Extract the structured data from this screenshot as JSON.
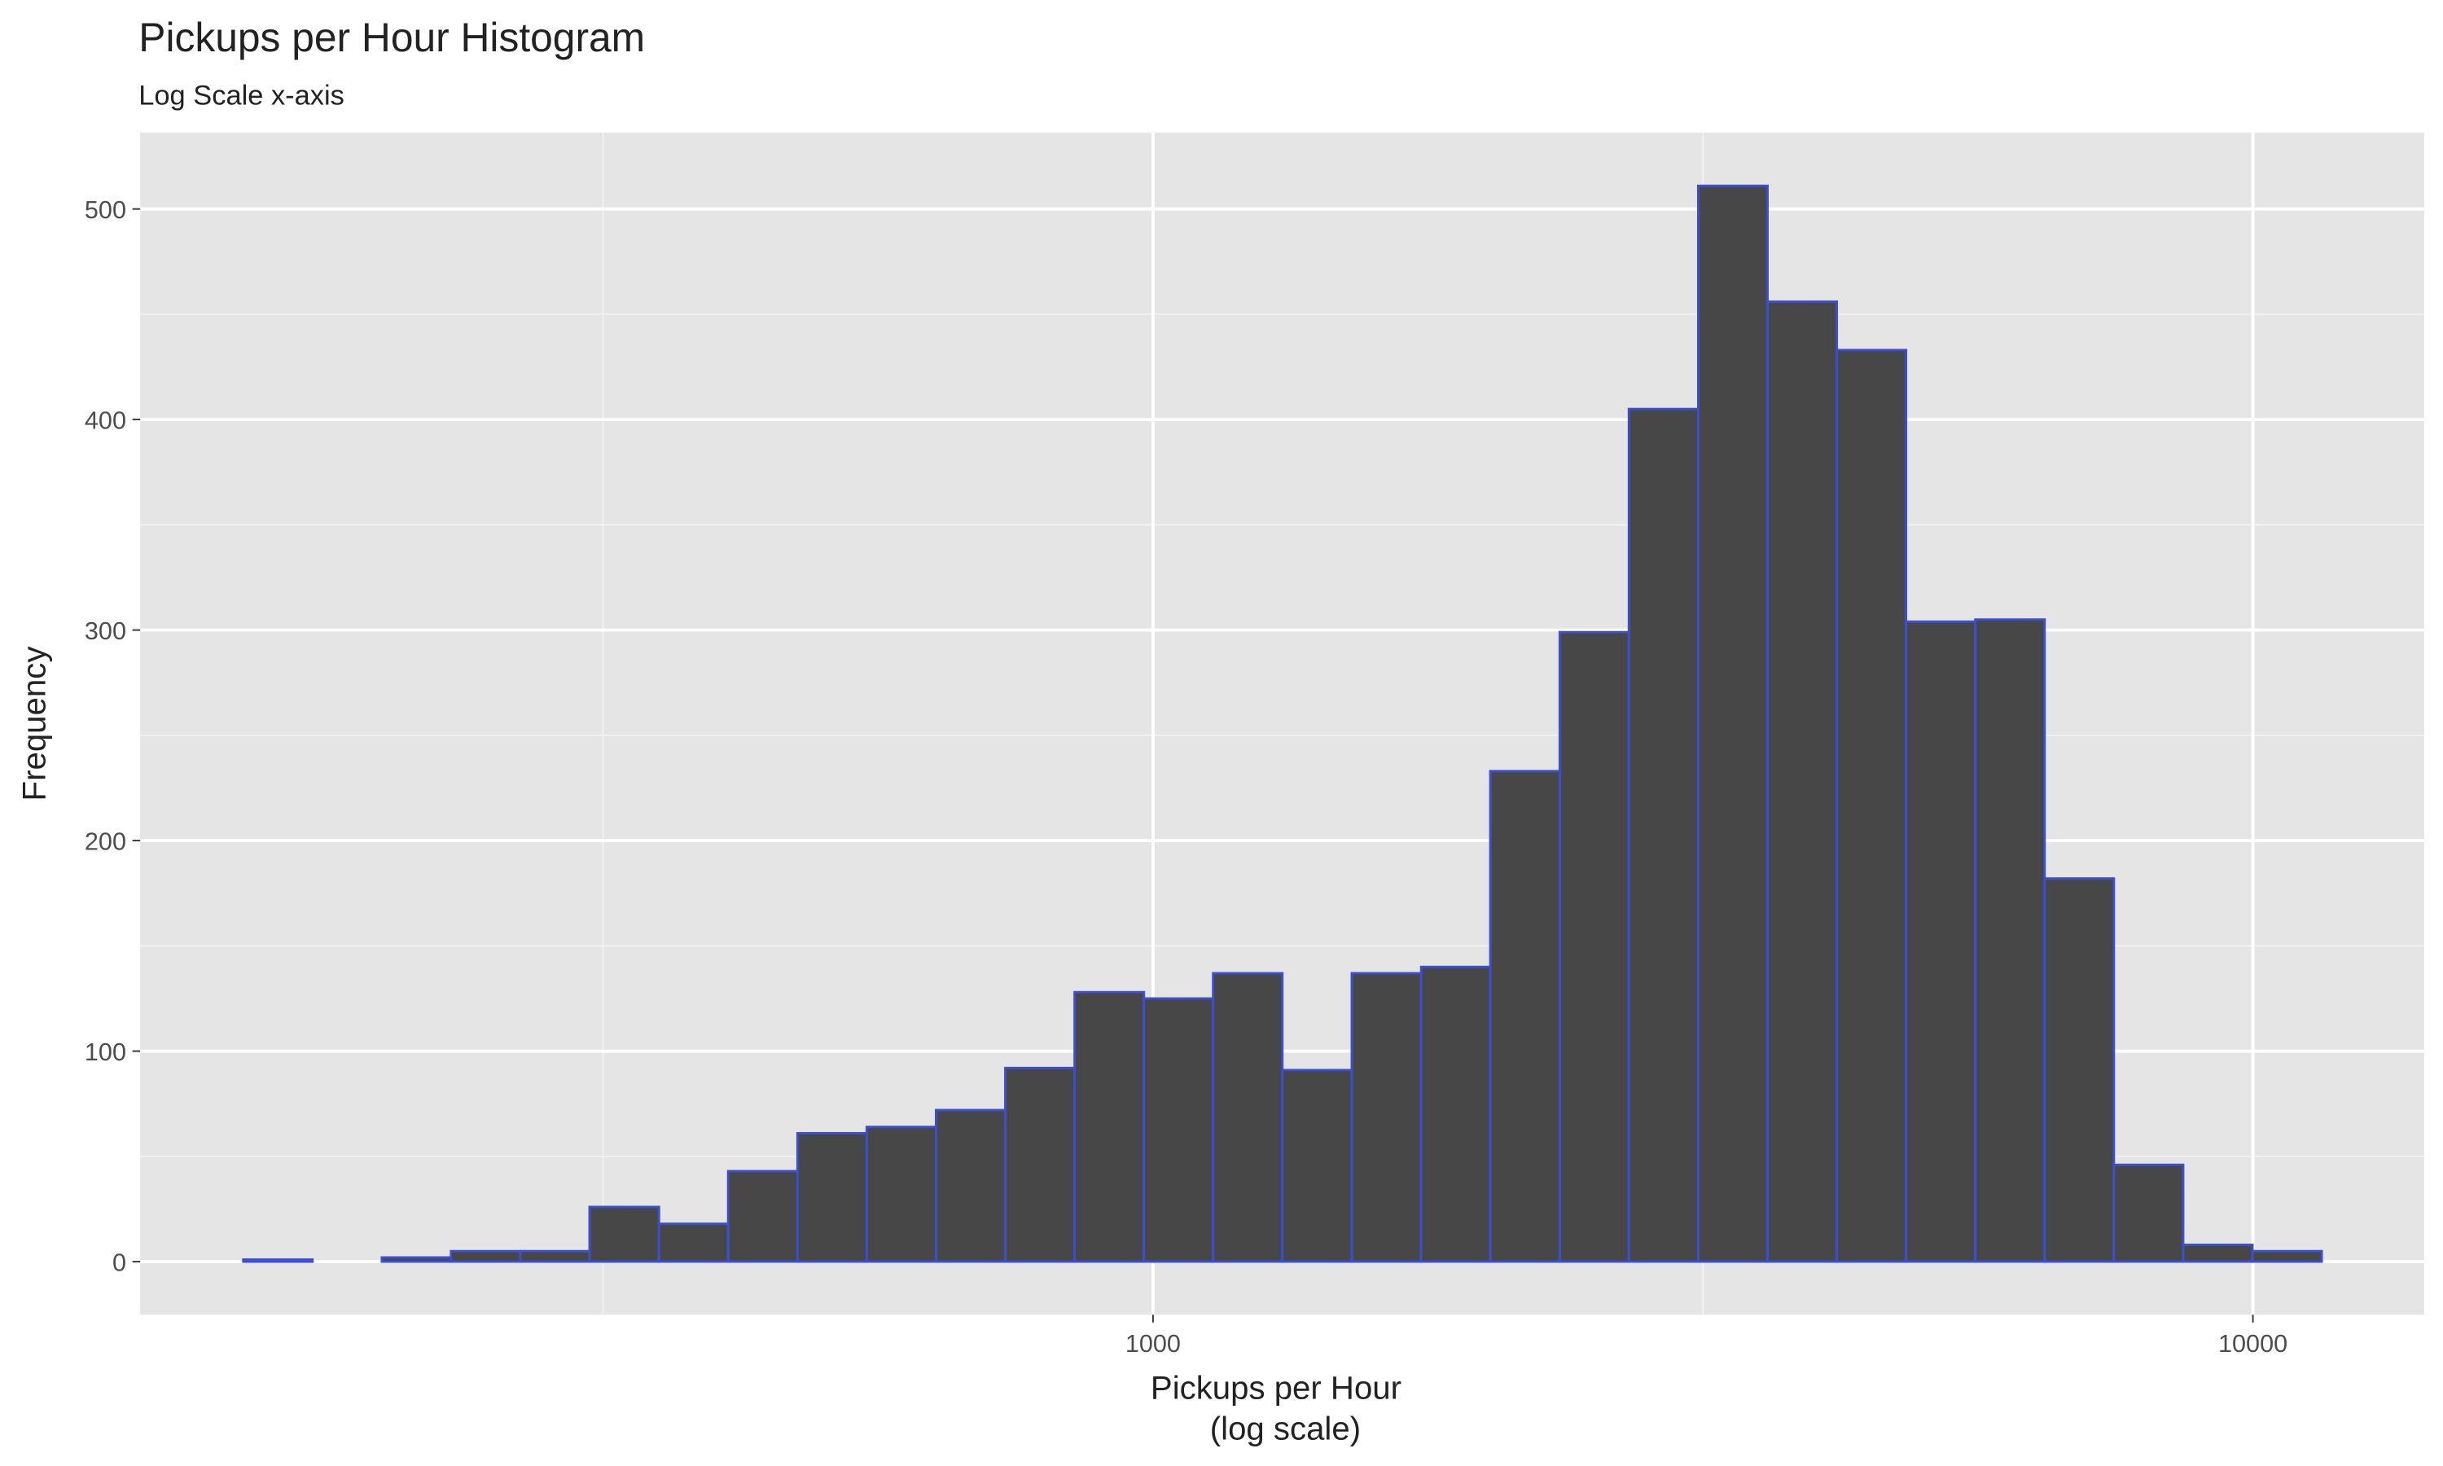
{
  "chart_data": {
    "type": "histogram",
    "title": "Pickups per Hour Histogram",
    "subtitle": "Log Scale x-axis",
    "xlabel": [
      "Pickups per Hour",
      "(log scale)"
    ],
    "ylabel": "Frequency",
    "x_log_scale": true,
    "bins": [
      148.9,
      172.1,
      199.0,
      230.0,
      265.9,
      307.4,
      355.5,
      410.9,
      475.1,
      549.2,
      634.9,
      734.0,
      848.6,
      981.1,
      1134,
      1311,
      1516,
      1753,
      2026,
      2343,
      2708,
      3131,
      3620,
      4185,
      4838,
      5593,
      6466,
      7475,
      8642,
      9991,
      11550
    ],
    "counts": [
      1,
      0,
      2,
      5,
      5,
      26,
      18,
      43,
      61,
      64,
      72,
      92,
      128,
      125,
      137,
      91,
      137,
      140,
      233,
      299,
      405,
      511,
      456,
      433,
      304,
      305,
      182,
      46,
      8,
      5
    ],
    "fill": "#474747",
    "edge_color": "#3a4fd6",
    "xlim": [
      120,
      14316
    ],
    "xticks": [
      1000,
      10000
    ],
    "x_minor_grid": [
      316.2,
      3162.3
    ],
    "ylim": [
      -25.2,
      536.3
    ],
    "yticks": [
      0,
      100,
      200,
      300,
      400,
      500
    ],
    "y_minor_grid": [
      50,
      150,
      250,
      350,
      450
    ],
    "grid": true
  }
}
